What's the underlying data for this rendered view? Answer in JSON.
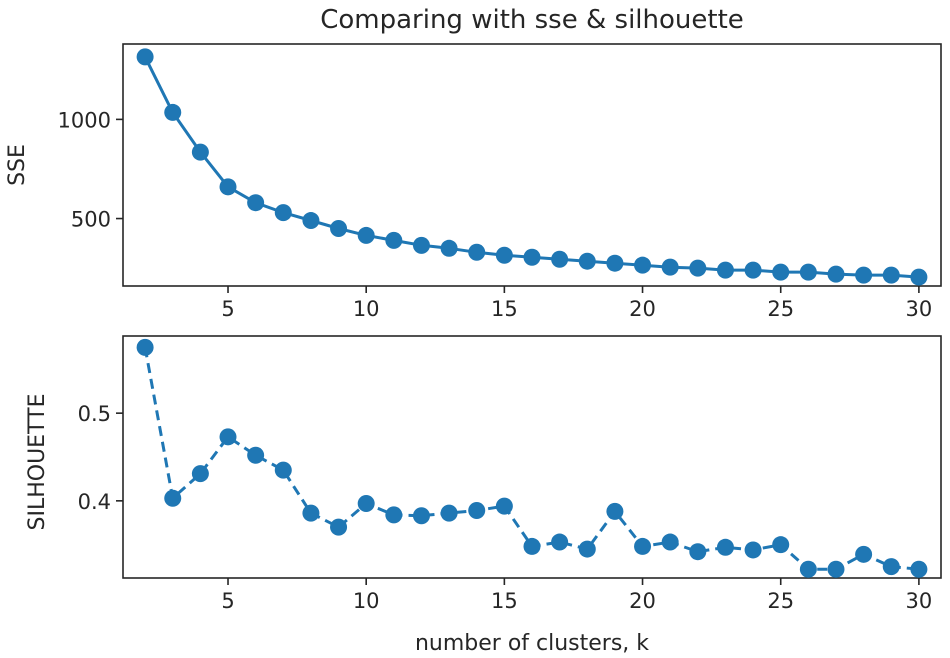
{
  "chart_data": [
    {
      "type": "line",
      "title": "Comparing with sse & silhouette",
      "xlabel": "",
      "ylabel": "SSE",
      "xlim": [
        1.2,
        30.8
      ],
      "ylim": [
        160,
        1380
      ],
      "xticks": [
        5,
        10,
        15,
        20,
        25,
        30
      ],
      "yticks": [
        500,
        1000
      ],
      "line_style": "solid",
      "color": "#1f77b4",
      "x": [
        2,
        3,
        4,
        5,
        6,
        7,
        8,
        9,
        10,
        11,
        12,
        13,
        14,
        15,
        16,
        17,
        18,
        19,
        20,
        21,
        22,
        23,
        24,
        25,
        26,
        27,
        28,
        29,
        30
      ],
      "y": [
        1315,
        1035,
        835,
        660,
        580,
        530,
        490,
        450,
        415,
        390,
        365,
        350,
        330,
        315,
        305,
        295,
        285,
        275,
        265,
        255,
        250,
        240,
        240,
        230,
        230,
        220,
        215,
        215,
        205
      ]
    },
    {
      "type": "line",
      "title": "",
      "xlabel": "number of clusters, k",
      "ylabel": "SILHOUETTE",
      "xlim": [
        1.2,
        30.8
      ],
      "ylim": [
        0.312,
        0.588
      ],
      "xticks": [
        5,
        10,
        15,
        20,
        25,
        30
      ],
      "yticks": [
        0.4,
        0.5
      ],
      "line_style": "dashed",
      "color": "#1f77b4",
      "x": [
        2,
        3,
        4,
        5,
        6,
        7,
        8,
        9,
        10,
        11,
        12,
        13,
        14,
        15,
        16,
        17,
        18,
        19,
        20,
        21,
        22,
        23,
        24,
        25,
        26,
        27,
        28,
        29,
        30
      ],
      "y": [
        0.575,
        0.403,
        0.431,
        0.473,
        0.452,
        0.435,
        0.386,
        0.37,
        0.397,
        0.384,
        0.383,
        0.386,
        0.389,
        0.394,
        0.348,
        0.353,
        0.345,
        0.388,
        0.348,
        0.353,
        0.342,
        0.347,
        0.344,
        0.35,
        0.322,
        0.322,
        0.339,
        0.325,
        0.322
      ]
    }
  ]
}
